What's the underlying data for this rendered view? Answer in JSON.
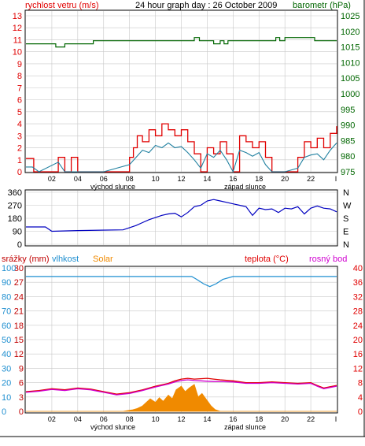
{
  "colors": {
    "wind": "#e00000",
    "gust": "#e00000",
    "wind_avg": "#2080a0",
    "pressure": "#006600",
    "direction": "#0000c0",
    "humidity": "#1f8fd0",
    "solar": "#f08a00",
    "rain": "#c00000",
    "temperature": "#e00000",
    "dewpoint": "#d000d0",
    "grid": "#c8c8c8",
    "axis": "#000000"
  },
  "chart_data": [
    {
      "type": "line",
      "title": "24 hour graph day : 26 October 2009",
      "left_label": "rychlost vetru (m/s)",
      "right_label": "barometr (hPa)",
      "xlabel_left": "východ slunce",
      "xlabel_right": "západ slunce",
      "x_ticks": [
        "02",
        "04",
        "06",
        "08",
        "10",
        "12",
        "14",
        "16",
        "18",
        "20",
        "22"
      ],
      "y_left_ticks": [
        "13",
        "12",
        "11",
        "10",
        "9",
        "8",
        "7",
        "6",
        "5",
        "4",
        "3",
        "2",
        "1",
        "0"
      ],
      "y_right_ticks": [
        "1025",
        "1020",
        "1015",
        "1010",
        "1005",
        "1000",
        "995",
        "990",
        "985",
        "980",
        "975"
      ],
      "ylim_left": [
        0,
        13
      ],
      "ylim_right": [
        975,
        1025
      ],
      "series": [
        {
          "key": "gust",
          "axis": "left",
          "x": [
            0,
            0.5,
            0.6,
            1.4,
            2.5,
            3.0,
            3.5,
            4.0,
            6.0,
            8.0,
            8.3,
            8.6,
            9.0,
            9.5,
            10.0,
            10.5,
            11.0,
            11.5,
            12.0,
            12.5,
            13.0,
            13.5,
            14.0,
            14.5,
            15.0,
            15.5,
            16.0,
            16.5,
            17.0,
            17.5,
            18.0,
            18.5,
            19.0,
            20.0,
            21.0,
            21.5,
            22.0,
            22.5,
            23.0,
            23.5,
            24.0
          ],
          "values": [
            1.1,
            1.1,
            0,
            0,
            1.2,
            0,
            1.2,
            0,
            0,
            1.2,
            2.0,
            3.0,
            2.5,
            3.5,
            3.0,
            4.0,
            3.5,
            3.0,
            3.5,
            2.5,
            1.5,
            0,
            2.0,
            1.5,
            2.5,
            1.5,
            0,
            3.0,
            2.5,
            2.0,
            2.5,
            1.2,
            0,
            0,
            1.2,
            2.5,
            2.0,
            2.8,
            2.0,
            3.2,
            3.8
          ]
        },
        {
          "key": "wind_avg",
          "axis": "left",
          "x": [
            0,
            0.5,
            1.0,
            2.5,
            3.0,
            4.0,
            6.0,
            8.0,
            8.5,
            9.0,
            9.5,
            10.0,
            10.5,
            11.0,
            11.5,
            12.0,
            12.5,
            13.0,
            13.5,
            14.0,
            14.5,
            15.0,
            15.5,
            16.0,
            16.5,
            17.0,
            17.5,
            18.0,
            18.5,
            19.0,
            20.0,
            21.0,
            21.5,
            22.0,
            22.5,
            23.0,
            23.5,
            24.0
          ],
          "values": [
            0.4,
            0.4,
            0,
            0.8,
            0,
            0,
            0,
            0.6,
            1.2,
            1.8,
            1.6,
            2.2,
            2.0,
            2.4,
            2.0,
            2.1,
            1.6,
            1.0,
            0.3,
            1.5,
            1.2,
            1.8,
            1.0,
            0,
            1.8,
            1.6,
            1.3,
            1.6,
            0.6,
            0,
            0,
            0.3,
            1.2,
            1.4,
            1.5,
            1.0,
            1.8,
            2.4
          ]
        },
        {
          "key": "pressure",
          "axis": "right",
          "x": [
            0,
            2.0,
            2.3,
            2.8,
            3.0,
            5.0,
            5.2,
            12.8,
            13.0,
            13.4,
            14.0,
            14.5,
            14.8,
            15.0,
            15.3,
            15.6,
            19.0,
            19.3,
            19.6,
            20.0,
            22.0,
            22.3,
            24.0
          ],
          "values": [
            1016,
            1016,
            1015,
            1015,
            1016,
            1016,
            1017,
            1017,
            1018,
            1017,
            1017,
            1016,
            1016,
            1017,
            1016,
            1017,
            1017,
            1018,
            1017,
            1018,
            1018,
            1017,
            1017
          ]
        }
      ]
    },
    {
      "type": "line",
      "title": "",
      "y_left_ticks": [
        "360",
        "270",
        "180",
        "90",
        "0"
      ],
      "y_right_ticks": [
        "N",
        "W",
        "S",
        "E",
        "N"
      ],
      "ylim": [
        0,
        360
      ],
      "series": [
        {
          "key": "direction",
          "axis": "left",
          "x": [
            0,
            1.5,
            2.0,
            4.0,
            7.5,
            8.0,
            8.5,
            9.0,
            9.5,
            10.0,
            10.5,
            11.0,
            11.5,
            12.0,
            12.5,
            13.0,
            13.5,
            14.0,
            14.5,
            15.0,
            15.5,
            16.0,
            16.5,
            17.0,
            17.5,
            18.0,
            18.5,
            19.0,
            19.5,
            20.0,
            20.5,
            21.0,
            21.5,
            22.0,
            22.5,
            23.0,
            23.5,
            24.0
          ],
          "values": [
            120,
            120,
            90,
            95,
            100,
            115,
            130,
            150,
            170,
            185,
            200,
            210,
            215,
            190,
            220,
            260,
            270,
            300,
            310,
            300,
            290,
            280,
            270,
            260,
            200,
            250,
            240,
            245,
            220,
            250,
            245,
            260,
            210,
            250,
            265,
            250,
            245,
            225
          ]
        }
      ]
    },
    {
      "type": "line",
      "title": "",
      "legend": [
        "srážky (mm)",
        "vlhkost",
        "Solar",
        "teplota (°C)",
        "rosný bod"
      ],
      "xlabel_left": "východ slunce",
      "xlabel_right": "západ slunce",
      "x_ticks": [
        "02",
        "04",
        "06",
        "08",
        "10",
        "12",
        "14",
        "16",
        "18",
        "20",
        "22"
      ],
      "y_rain_ticks": [
        "30",
        "27",
        "24",
        "21",
        "18",
        "15",
        "12",
        "9",
        "6",
        "3",
        "0"
      ],
      "y_humidity_ticks": [
        "100",
        "90",
        "80",
        "70",
        "60",
        "50",
        "40",
        "30",
        "20",
        "10",
        "0"
      ],
      "y_temp_ticks": [
        "40",
        "36",
        "32",
        "28",
        "24",
        "20",
        "16",
        "12",
        "8",
        "4",
        "0"
      ],
      "ylim_rain": [
        0,
        30
      ],
      "ylim_humidity": [
        0,
        100
      ],
      "ylim_temp": [
        0,
        40
      ],
      "series": [
        {
          "key": "humidity",
          "x": [
            0,
            4.0,
            8.0,
            12.0,
            12.8,
            13.2,
            13.7,
            14.2,
            14.7,
            15.2,
            16.0,
            18.0,
            20.0,
            22.0,
            24.0
          ],
          "values": [
            94,
            94,
            94,
            94,
            94,
            92,
            89,
            87,
            89,
            92,
            94,
            94,
            94,
            94,
            94
          ]
        },
        {
          "key": "temperature",
          "x": [
            0,
            1.0,
            2.0,
            3.0,
            4.0,
            5.0,
            6.0,
            7.0,
            8.0,
            9.0,
            10.0,
            11.0,
            11.5,
            12.0,
            12.5,
            13.0,
            13.5,
            14.0,
            14.5,
            15.0,
            16.0,
            17.0,
            18.0,
            19.0,
            20.0,
            21.0,
            22.0,
            22.5,
            23.0,
            24.0
          ],
          "values": [
            5.5,
            5.8,
            6.3,
            6.0,
            6.5,
            6.2,
            5.5,
            4.8,
            5.2,
            6.0,
            7.0,
            7.8,
            8.5,
            9.0,
            9.2,
            9.0,
            9.1,
            9.2,
            9.0,
            8.8,
            8.5,
            8.0,
            8.0,
            8.2,
            8.0,
            7.8,
            8.0,
            7.2,
            6.5,
            7.2
          ]
        },
        {
          "key": "dewpoint",
          "x": [
            0,
            1.0,
            2.0,
            3.0,
            4.0,
            5.0,
            6.0,
            7.0,
            8.0,
            9.0,
            10.0,
            11.0,
            11.5,
            12.0,
            12.5,
            13.0,
            13.5,
            14.0,
            14.5,
            15.0,
            16.0,
            17.0,
            18.0,
            19.0,
            20.0,
            21.0,
            22.0,
            22.5,
            23.0,
            24.0
          ],
          "values": [
            5.3,
            5.6,
            6.1,
            5.8,
            6.3,
            6.0,
            5.3,
            4.6,
            5.0,
            5.8,
            6.8,
            7.6,
            8.2,
            8.6,
            8.8,
            8.6,
            8.5,
            8.4,
            8.3,
            8.3,
            8.2,
            7.8,
            7.8,
            8.0,
            7.8,
            7.6,
            7.8,
            7.0,
            6.3,
            7.0
          ]
        },
        {
          "key": "solar",
          "x": [
            0,
            7.5,
            7.8,
            8.2,
            8.6,
            9.0,
            9.3,
            9.6,
            10.0,
            10.3,
            10.6,
            11.0,
            11.3,
            11.6,
            12.0,
            12.3,
            12.6,
            13.0,
            13.3,
            13.6,
            14.0,
            14.3,
            14.6,
            15.0,
            24.0
          ],
          "values": [
            0,
            0,
            0.2,
            0.4,
            0.8,
            1.5,
            2.5,
            3.5,
            2.5,
            3.8,
            2.8,
            4.5,
            3.5,
            6.0,
            7.0,
            5.5,
            6.5,
            7.5,
            4.0,
            5.0,
            3.0,
            1.5,
            0.5,
            0,
            0
          ]
        }
      ]
    }
  ]
}
